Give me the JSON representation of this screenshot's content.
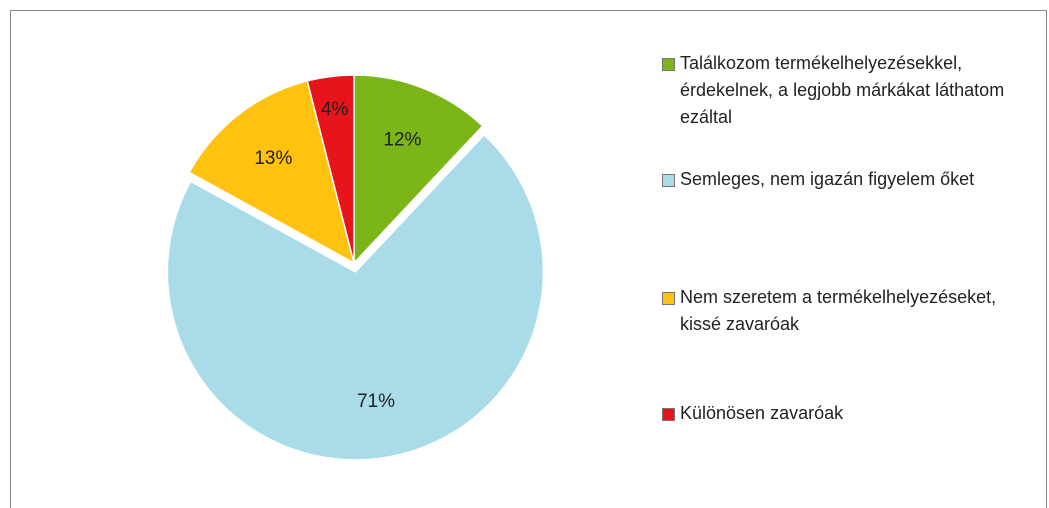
{
  "chart_data": {
    "type": "pie",
    "categories": [
      "Találkozom termékelhelyezésekkel, érdekelnek, a legjobb márkákat láthatom ezáltal",
      "Semleges, nem igazán figyelem őket",
      "Nem szeretem a termékelhelyezéseket, kissé zavaróak",
      "Különösen zavaróak"
    ],
    "values": [
      12,
      71,
      13,
      4
    ],
    "value_labels": [
      "12%",
      "71%",
      "13%",
      "4%"
    ],
    "colors": [
      "#7cb518",
      "#a9dbe9",
      "#ffc20e",
      "#e8141b"
    ],
    "legend": "right"
  }
}
